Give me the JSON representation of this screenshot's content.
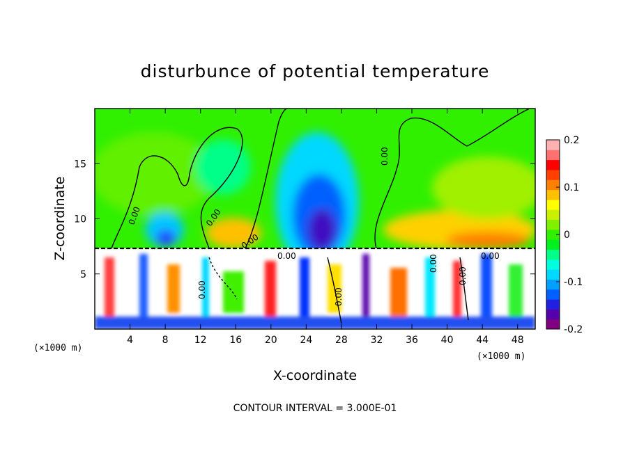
{
  "chart_data": {
    "type": "heatmap",
    "title": "disturbunce of potential temperature",
    "xlabel": "X-coordinate",
    "ylabel": "Z-coordinate",
    "x_unit": "(×1000 m)",
    "x_unit_right": "(×1000 m)",
    "xlim": [
      0,
      50
    ],
    "ylim": [
      0,
      20
    ],
    "x_ticks": [
      "4",
      "8",
      "12",
      "16",
      "20",
      "24",
      "28",
      "32",
      "36",
      "40",
      "44",
      "48"
    ],
    "y_ticks": [
      "5",
      "10",
      "15"
    ],
    "colorbar": {
      "range": [
        -0.2,
        0.2
      ],
      "ticks": [
        "0.2",
        "0.1",
        "0",
        "-0.1",
        "-0.2"
      ],
      "colors": [
        "#800080",
        "#5500aa",
        "#2020e0",
        "#0060ff",
        "#00a0ff",
        "#00d8ff",
        "#00ffdd",
        "#00ff88",
        "#00f020",
        "#30f000",
        "#80f000",
        "#c8f000",
        "#ffff00",
        "#ffc000",
        "#ff8000",
        "#ff4000",
        "#ff0000",
        "#ff7070",
        "#ffb0b0"
      ]
    },
    "contour_labels": [
      "0.00",
      "0.00",
      "0.00",
      "0.00",
      "0.00",
      "0.00",
      "0.00",
      "0.00",
      "0.00",
      "0.00"
    ],
    "contour_interval_text": "CONTOUR INTERVAL = 3.000E-01"
  }
}
